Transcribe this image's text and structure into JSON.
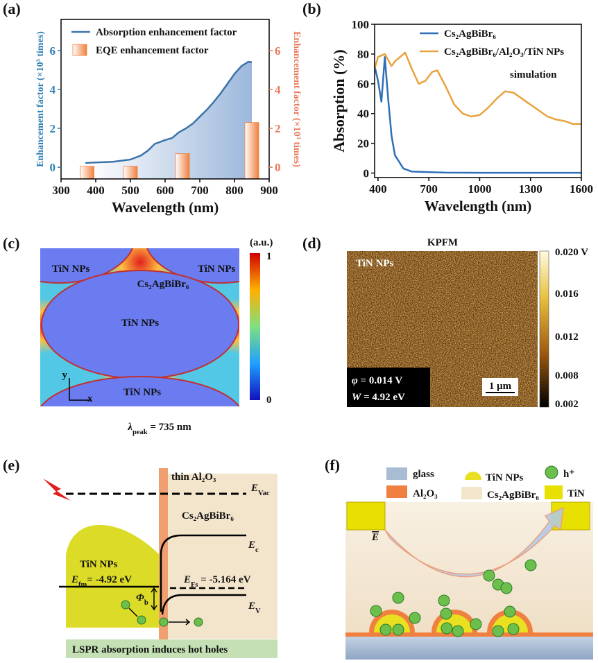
{
  "chart_data": [
    {
      "type": "combo",
      "panel_label": "(a)",
      "xlabel": "Wavelength (nm)",
      "ylabel": "Enhancement factor (×10³ times)",
      "y2label": "Enhancement factor (×10³ times)",
      "y_color": "#2f7fb4",
      "y2_color": "#e8795a",
      "xlim": [
        300,
        900
      ],
      "xticks": [
        300,
        400,
        500,
        600,
        700,
        800,
        900
      ],
      "ylim": [
        -0.6,
        7.6
      ],
      "yticks": [
        0,
        2,
        4,
        6
      ],
      "y2lim": [
        -0.6,
        7.6
      ],
      "y2ticks": [
        0,
        2,
        4,
        6
      ],
      "series": [
        {
          "name": "Absorption enhancement factor",
          "type": "line",
          "fill": true,
          "color": "#3b73a8",
          "x": [
            370,
            400,
            450,
            500,
            530,
            550,
            570,
            600,
            620,
            640,
            660,
            680,
            700,
            720,
            740,
            760,
            780,
            800,
            820,
            840,
            850
          ],
          "values": [
            0.22,
            0.25,
            0.28,
            0.4,
            0.6,
            0.85,
            1.2,
            1.4,
            1.5,
            1.8,
            2.0,
            2.25,
            2.6,
            2.95,
            3.35,
            3.8,
            4.3,
            4.8,
            5.2,
            5.42,
            5.4
          ]
        },
        {
          "name": "EQE enhancement factor",
          "type": "bar",
          "axis": "y2",
          "color": "#f07f3c",
          "x": [
            375,
            500,
            650,
            850
          ],
          "values": [
            0.05,
            0.05,
            0.7,
            2.3
          ]
        }
      ]
    },
    {
      "type": "line",
      "panel_label": "(b)",
      "xlabel": "Wavelength (nm)",
      "ylabel": "Absorption (%)",
      "annotation": "simulation",
      "xlim": [
        380,
        1600
      ],
      "xticks": [
        400,
        700,
        1000,
        1300,
        1600
      ],
      "ylim": [
        -3,
        100
      ],
      "yticks": [
        0,
        20,
        40,
        60,
        80,
        100
      ],
      "series": [
        {
          "name": "Cs₂AgBiBr₆",
          "color": "#2e6fb7",
          "x": [
            380,
            400,
            420,
            440,
            460,
            480,
            500,
            550,
            600,
            800,
            1000,
            1300,
            1600
          ],
          "values": [
            72,
            62,
            48,
            78,
            50,
            25,
            12,
            3,
            1,
            0.3,
            0.2,
            0.2,
            0.2
          ]
        },
        {
          "name": "Cs₂AgBiBr₆/Al₂O₃/TiN NPs",
          "color": "#e8a23c",
          "x": [
            380,
            400,
            440,
            480,
            500,
            560,
            600,
            640,
            680,
            720,
            750,
            800,
            850,
            900,
            950,
            1000,
            1050,
            1100,
            1150,
            1200,
            1250,
            1300,
            1350,
            1400,
            1450,
            1500,
            1550,
            1600
          ],
          "values": [
            70,
            78,
            80,
            72,
            75,
            81,
            70,
            60,
            62,
            68,
            69,
            58,
            46,
            40,
            38,
            39,
            44,
            50,
            55,
            54,
            50,
            46,
            42,
            38,
            36,
            35,
            33,
            33
          ]
        }
      ]
    }
  ],
  "panels": {
    "c": {
      "label": "(c)",
      "tin_labels": [
        "TiN NPs",
        "TiN NPs",
        "TiN NPs",
        "TiN NPs"
      ],
      "perovskite": "Cs₂AgBiBr₆",
      "axes": {
        "y": "y",
        "x": "x"
      },
      "colorbar_unit": "(a.u.)",
      "colorbar_max": 1,
      "colorbar_min": 0,
      "caption": {
        "main": "λ",
        "sub": "peak",
        "rest": " = 735 nm"
      }
    },
    "d": {
      "label": "(d)",
      "title": "KPFM",
      "region": "TiN NPs",
      "phi": {
        "main": "φ",
        "rest": " = 0.014 V"
      },
      "work_function": {
        "main": "W",
        "rest": " = 4.92 eV"
      },
      "scale_bar": "1 μm",
      "colorbar_labels": [
        "0.020 V",
        "0.016",
        "0.012",
        "0.008",
        "0.002"
      ]
    },
    "e": {
      "label": "(e)",
      "barrier": "thin Al₂O₃",
      "vacuum": {
        "main": "E",
        "sub": "Vac"
      },
      "perovskite": "Cs₂AgBiBr₆",
      "conduction": {
        "main": "E",
        "sub": "c"
      },
      "metal": "TiN NPs",
      "fermi_metal": {
        "main": "E",
        "sub": "fm",
        "rest": "= -4.92 eV"
      },
      "fermi_semi": {
        "main": "E",
        "sub": "Fs",
        "rest": " = -5.164 eV"
      },
      "barrier_height": {
        "main": "Φ",
        "sub": "b"
      },
      "valence": {
        "main": "E",
        "sub": "V"
      },
      "caption": "LSPR absorption induces hot holes"
    },
    "f": {
      "label": "(f)",
      "legend": {
        "glass": "glass",
        "nps": "TiN NPs",
        "hole": "h⁺",
        "oxide": "Al₂O₃",
        "perovskite": "Cs₂AgBiBr₆",
        "electrode": "TiN"
      },
      "field": {
        "main": "E"
      }
    }
  }
}
